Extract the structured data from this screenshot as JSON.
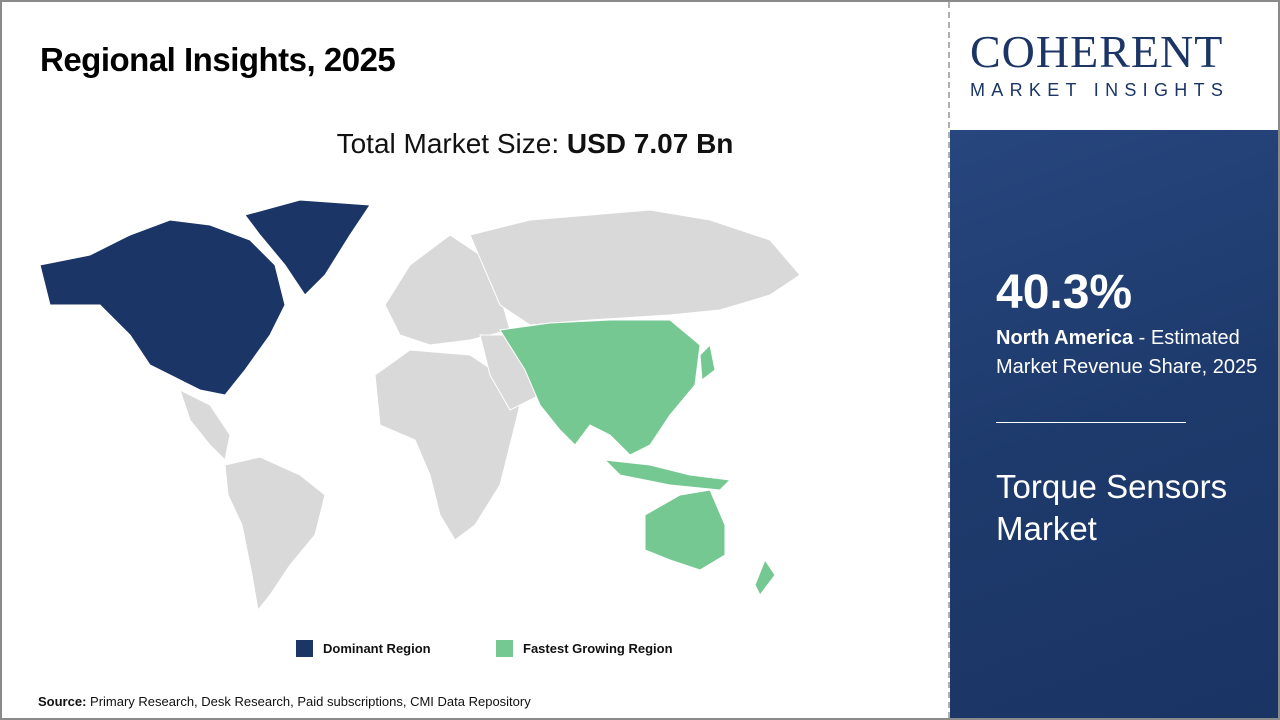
{
  "title": "Regional Insights, 2025",
  "market_size": {
    "label": "Total Market Size: ",
    "value": "USD 7.07 Bn"
  },
  "legend": [
    {
      "label": "Dominant Region",
      "color": "#1b3566"
    },
    {
      "label": "Fastest Growing Region",
      "color": "#76c893"
    }
  ],
  "source": {
    "label": "Source:",
    "text": " Primary Research, Desk Research, Paid subscriptions, CMI Data Repository"
  },
  "logo": {
    "main": "COHERENT",
    "sub": "MARKET INSIGHTS"
  },
  "highlight": {
    "percent": "40.3%",
    "region": "North America",
    "description": " - Estimated Market Revenue Share, 2025"
  },
  "market_name": "Torque Sensors Market",
  "colors": {
    "dominant": "#1b3566",
    "fastest": "#76c893",
    "other": "#d9d9d9",
    "panel": "#1e3a6c"
  }
}
